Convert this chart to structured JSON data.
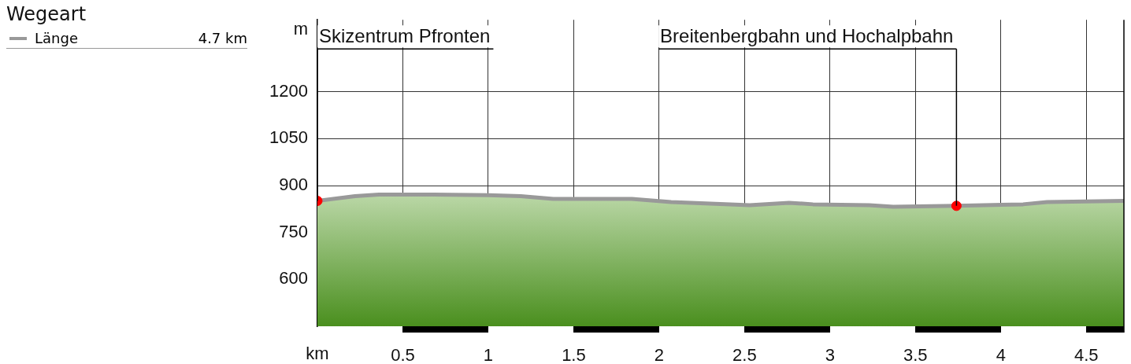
{
  "chart_data": {
    "type": "area",
    "legend_title": "Wegeart",
    "legend": "top left",
    "xlabel": "km",
    "ylabel": "m",
    "xlim": [
      0,
      4.72
    ],
    "xticks": [
      0.5,
      1,
      1.5,
      2,
      2.5,
      3,
      3.5,
      4,
      4.5
    ],
    "ylim": [
      450,
      1430
    ],
    "yticks": [
      600,
      750,
      900,
      1050,
      1200
    ],
    "grid": true,
    "series": [
      {
        "name": "Länge",
        "color": "#999999",
        "x": [
          0,
          0.22,
          0.36,
          0.68,
          1.0,
          1.19,
          1.38,
          1.84,
          2.07,
          2.53,
          2.76,
          2.9,
          3.23,
          3.37,
          3.74,
          4.13,
          4.27,
          4.72
        ],
        "values": [
          851,
          866,
          871,
          871,
          869,
          866,
          857,
          857,
          847,
          837,
          845,
          840,
          837,
          832,
          835,
          840,
          847,
          851
        ]
      },
      {
        "type": "scatter",
        "color": "#ff0000",
        "marker": "circle",
        "x": [
          0,
          3.74
        ],
        "values": [
          851,
          835
        ]
      }
    ],
    "annotations": [
      "4.7 km",
      {
        "text": "Skizentrum Pfronten",
        "x": 0,
        "y": 851
      },
      {
        "text": "Breitenbergbahn und Hochalpbahn",
        "x": 3.74,
        "y": 835
      }
    ]
  }
}
